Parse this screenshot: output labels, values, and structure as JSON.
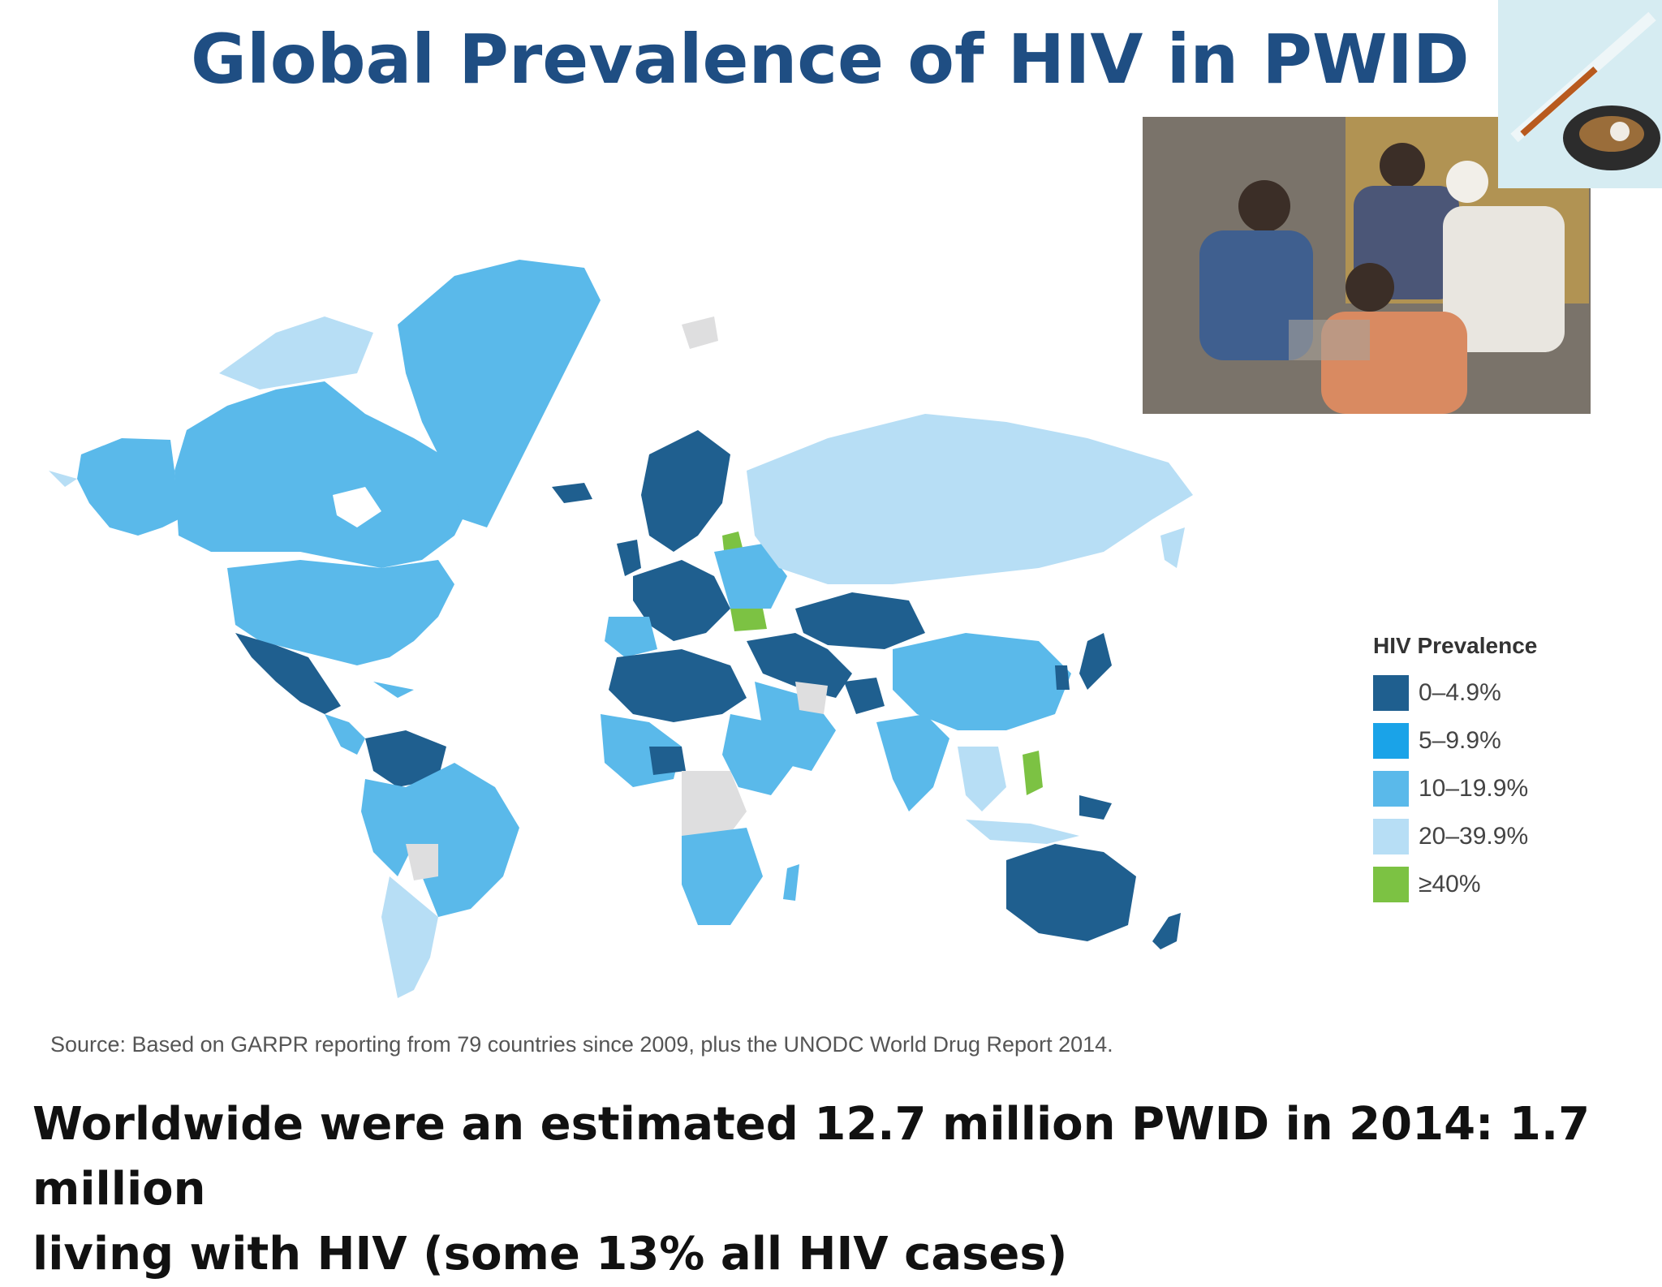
{
  "slide": {
    "title": "Global Prevalence of HIV in PWID",
    "legend": {
      "title": "HIV Prevalence",
      "items": [
        {
          "label": "0–4.9%",
          "color": "#1f5f8f"
        },
        {
          "label": "5–9.9%",
          "color": "#1aa3e8"
        },
        {
          "label": "10–19.9%",
          "color": "#5ab9ea"
        },
        {
          "label": "20–39.9%",
          "color": "#b7def5"
        },
        {
          "label": "≥40%",
          "color": "#7cc243"
        }
      ]
    },
    "source": "Source: Based on GARPR reporting from 79 countries since 2009, plus the UNODC World Drug Report 2014.",
    "footer_line1": "Worldwide were an estimated 12.7 million PWID  in 2014:  1.7 million",
    "footer_line2": "living with HIV (some 13% all HIV cases)"
  },
  "map_colors": {
    "no_data": "#dededf",
    "dark": "#1f5f8f",
    "medium": "#1aa3e8",
    "light": "#5ab9ea",
    "pale": "#b7def5",
    "green": "#7cc243"
  }
}
